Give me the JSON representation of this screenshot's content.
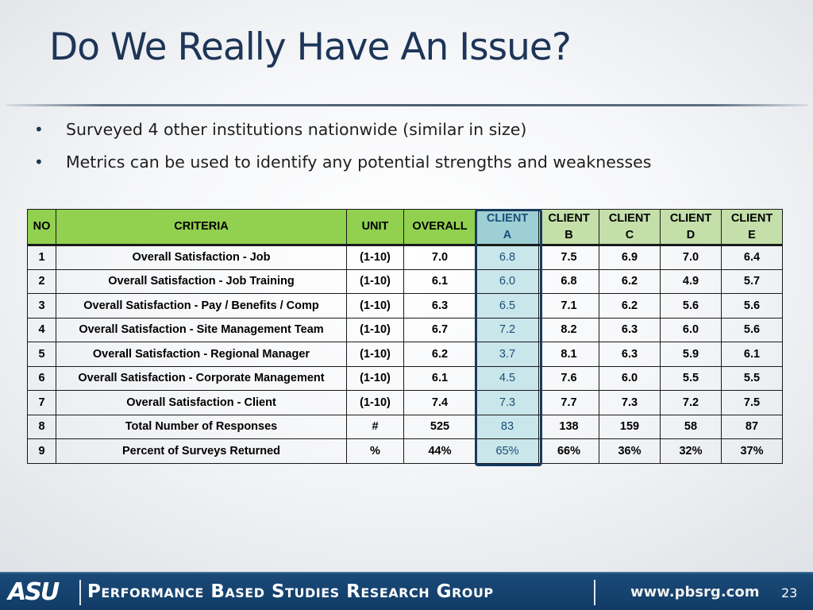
{
  "slide": {
    "title": "Do We Really Have An Issue?",
    "bullets": [
      "Surveyed 4 other institutions nationwide (similar in size)",
      "Metrics can be used to identify any potential strengths and weaknesses"
    ]
  },
  "table": {
    "headers": {
      "no": "NO",
      "criteria": "CRITERIA",
      "unit": "UNIT",
      "overall": "OVERALL",
      "client_a": [
        "CLIENT",
        "A"
      ],
      "client_b": [
        "CLIENT",
        "B"
      ],
      "client_c": [
        "CLIENT",
        "C"
      ],
      "client_d": [
        "CLIENT",
        "D"
      ],
      "client_e": [
        "CLIENT",
        "E"
      ]
    },
    "rows": [
      [
        "1",
        "Overall Satisfaction - Job",
        "(1-10)",
        "7.0",
        "6.8",
        "7.5",
        "6.9",
        "7.0",
        "6.4"
      ],
      [
        "2",
        "Overall Satisfaction - Job Training",
        "(1-10)",
        "6.1",
        "6.0",
        "6.8",
        "6.2",
        "4.9",
        "5.7"
      ],
      [
        "3",
        "Overall Satisfaction - Pay / Benefits / Comp",
        "(1-10)",
        "6.3",
        "6.5",
        "7.1",
        "6.2",
        "5.6",
        "5.6"
      ],
      [
        "4",
        "Overall Satisfaction - Site Management Team",
        "(1-10)",
        "6.7",
        "7.2",
        "8.2",
        "6.3",
        "6.0",
        "5.6"
      ],
      [
        "5",
        "Overall Satisfaction - Regional Manager",
        "(1-10)",
        "6.2",
        "3.7",
        "8.1",
        "6.3",
        "5.9",
        "6.1"
      ],
      [
        "6",
        "Overall Satisfaction - Corporate Management",
        "(1-10)",
        "6.1",
        "4.5",
        "7.6",
        "6.0",
        "5.5",
        "5.5"
      ],
      [
        "7",
        "Overall Satisfaction - Client",
        "(1-10)",
        "7.4",
        "7.3",
        "7.7",
        "7.3",
        "7.2",
        "7.5"
      ],
      [
        "8",
        "Total Number of Responses",
        "#",
        "525",
        "83",
        "138",
        "159",
        "58",
        "87"
      ],
      [
        "9",
        "Percent of Surveys Returned",
        "%",
        "44%",
        "65%",
        "66%",
        "36%",
        "32%",
        "37%"
      ]
    ]
  },
  "footer": {
    "logo": "ASU",
    "org": "Performance Based Studies Research Group",
    "url": "www.pbsrg.com",
    "page": "23"
  },
  "colors": {
    "title": "#1d3557",
    "header_green": "#92d050",
    "header_light_green": "#c4dfaa",
    "highlight": "#c9e6ea",
    "footer_bg": "#103b66"
  }
}
